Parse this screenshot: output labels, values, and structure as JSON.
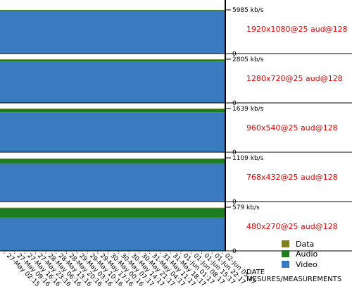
{
  "chart_data": {
    "type": "area",
    "x_axis": {
      "title_line1": "DATE",
      "title_line2": "MESURES/MEASUREMENTS",
      "tick_labels": [
        "27-May 02:15",
        "27-May 09:16",
        "27-May 16:16",
        "27-May 23:16",
        "28-May 06:16",
        "28-May 13:16",
        "28-May 20:16",
        "29-May 03:16",
        "29-May 10:16",
        "29-May 17:16",
        "30-May 00:16",
        "30-May 07:17",
        "30-May 14:17",
        "30-May 21:17",
        "31-May 04:17",
        "31-May 11:17",
        "31-May 18:17",
        "01-Jun 01:17",
        "01-Jun 08:17",
        "01-Jun 15:17",
        "01-Jun 22:17",
        "02-Jun 05:17"
      ]
    },
    "legend": {
      "placement": "bottom-right",
      "items": [
        {
          "name": "Data",
          "color": "#808020"
        },
        {
          "name": "Audio",
          "color": "#1e7d1e"
        },
        {
          "name": "Video",
          "color": "#3a7abf"
        }
      ]
    },
    "panels": [
      {
        "profile": "1920x1080@25 aud@128",
        "max_label": "5985 kb/s",
        "min_label": "0",
        "ymax": 5985,
        "video": 5840,
        "audio": 128,
        "data": 5
      },
      {
        "profile": "1280x720@25 aud@128",
        "max_label": "2805 kb/s",
        "min_label": "0",
        "ymax": 2805,
        "video": 2660,
        "audio": 128,
        "data": 5
      },
      {
        "profile": "960x540@25 aud@128",
        "max_label": "1639 kb/s",
        "min_label": "0",
        "ymax": 1639,
        "video": 1500,
        "audio": 128,
        "data": 5
      },
      {
        "profile": "768x432@25 aud@128",
        "max_label": "1109 kb/s",
        "min_label": "0",
        "ymax": 1109,
        "video": 960,
        "audio": 128,
        "data": 5
      },
      {
        "profile": "480x270@25 aud@128",
        "max_label": "579 kb/s",
        "min_label": "0",
        "ymax": 579,
        "video": 440,
        "audio": 128,
        "data": 5
      }
    ]
  }
}
